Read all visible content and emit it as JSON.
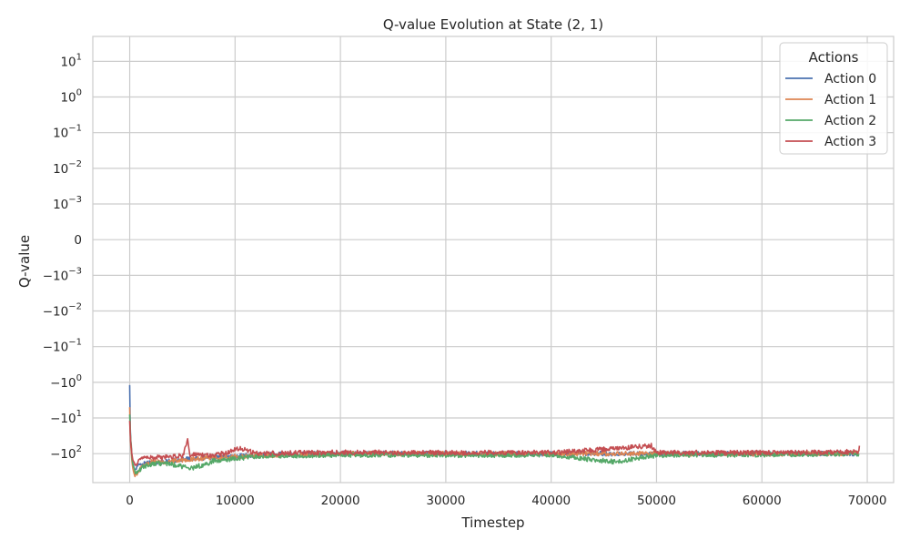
{
  "chart_data": {
    "type": "line",
    "title": "Q-value Evolution at State (2, 1)",
    "xlabel": "Timestep",
    "ylabel": "Q-value",
    "y_scale": "symlog",
    "y_linthresh": 0.001,
    "xlim": [
      -3500,
      72500
    ],
    "ylim": [
      -650,
      50
    ],
    "x_ticks": [
      0,
      10000,
      20000,
      30000,
      40000,
      50000,
      60000,
      70000
    ],
    "x_tick_labels": [
      "0",
      "10000",
      "20000",
      "30000",
      "40000",
      "50000",
      "60000",
      "70000"
    ],
    "y_ticks": [
      10,
      1,
      0.1,
      0.01,
      0.001,
      0,
      -0.001,
      -0.01,
      -0.1,
      -1,
      -10,
      -100
    ],
    "y_tick_labels": [
      {
        "base": "10",
        "exp": "1"
      },
      {
        "base": "10",
        "exp": "0"
      },
      {
        "base": "10",
        "exp": "−1"
      },
      {
        "base": "10",
        "exp": "−2"
      },
      {
        "base": "10",
        "exp": "−3"
      },
      {
        "base": "0",
        "exp": ""
      },
      {
        "base": "−10",
        "exp": "−3"
      },
      {
        "base": "−10",
        "exp": "−2"
      },
      {
        "base": "−10",
        "exp": "−1"
      },
      {
        "base": "−10",
        "exp": "0"
      },
      {
        "base": "−10",
        "exp": "1"
      },
      {
        "base": "−10",
        "exp": "2"
      }
    ],
    "grid": true,
    "legend": {
      "title": "Actions",
      "placement": "top-right"
    },
    "series": [
      {
        "name": "Action 0",
        "color": "#4c72b0",
        "points": [
          [
            0,
            -1.2
          ],
          [
            60,
            -20
          ],
          [
            150,
            -70
          ],
          [
            300,
            -190
          ],
          [
            500,
            -300
          ],
          [
            800,
            -230
          ],
          [
            1200,
            -200
          ],
          [
            2000,
            -180
          ],
          [
            3000,
            -175
          ],
          [
            5000,
            -140
          ],
          [
            8000,
            -130
          ],
          [
            12000,
            -110
          ],
          [
            20000,
            -98
          ],
          [
            30000,
            -100
          ],
          [
            40000,
            -102
          ],
          [
            50000,
            -100
          ],
          [
            60000,
            -101
          ],
          [
            69200,
            -100
          ]
        ]
      },
      {
        "name": "Action 1",
        "color": "#dd8452",
        "points": [
          [
            0,
            -5
          ],
          [
            60,
            -30
          ],
          [
            150,
            -90
          ],
          [
            300,
            -260
          ],
          [
            500,
            -450
          ],
          [
            700,
            -380
          ],
          [
            1000,
            -260
          ],
          [
            2000,
            -170
          ],
          [
            3000,
            -175
          ],
          [
            5000,
            -150
          ],
          [
            8000,
            -130
          ],
          [
            12000,
            -115
          ],
          [
            20000,
            -100
          ],
          [
            30000,
            -102
          ],
          [
            40000,
            -101
          ],
          [
            50000,
            -100
          ],
          [
            60000,
            -104
          ],
          [
            69200,
            -100
          ]
        ]
      },
      {
        "name": "Action 2",
        "color": "#55a868",
        "points": [
          [
            0,
            -8
          ],
          [
            60,
            -25
          ],
          [
            150,
            -60
          ],
          [
            300,
            -200
          ],
          [
            600,
            -360
          ],
          [
            900,
            -300
          ],
          [
            1200,
            -240
          ],
          [
            2000,
            -200
          ],
          [
            3000,
            -190
          ],
          [
            4000,
            -200
          ],
          [
            5800,
            -260
          ],
          [
            8000,
            -160
          ],
          [
            12000,
            -120
          ],
          [
            20000,
            -110
          ],
          [
            30000,
            -112
          ],
          [
            40000,
            -110
          ],
          [
            46000,
            -170
          ],
          [
            50000,
            -112
          ],
          [
            60000,
            -108
          ],
          [
            69200,
            -103
          ]
        ]
      },
      {
        "name": "Action 3",
        "color": "#c44e52",
        "points": [
          [
            0,
            -12
          ],
          [
            60,
            -30
          ],
          [
            150,
            -70
          ],
          [
            300,
            -150
          ],
          [
            500,
            -200
          ],
          [
            800,
            -170
          ],
          [
            1200,
            -140
          ],
          [
            2000,
            -130
          ],
          [
            3000,
            -130
          ],
          [
            5000,
            -115
          ],
          [
            5500,
            -40
          ],
          [
            5700,
            -110
          ],
          [
            8000,
            -115
          ],
          [
            10500,
            -70
          ],
          [
            12000,
            -100
          ],
          [
            20000,
            -92
          ],
          [
            30000,
            -95
          ],
          [
            40000,
            -95
          ],
          [
            49500,
            -60
          ],
          [
            50000,
            -95
          ],
          [
            60000,
            -95
          ],
          [
            69200,
            -90
          ],
          [
            69250,
            -60
          ]
        ]
      }
    ]
  }
}
